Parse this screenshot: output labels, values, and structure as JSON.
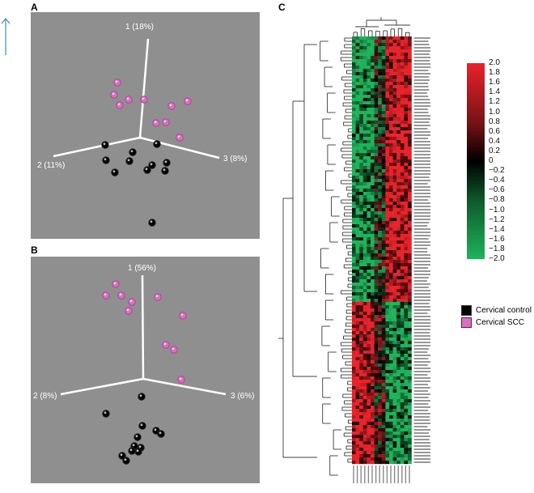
{
  "panels": {
    "a": {
      "letter": "A",
      "axes": [
        "1 (18%)",
        "2 (11%)",
        "3 (8%)"
      ]
    },
    "b": {
      "letter": "B",
      "axes": [
        "1 (56%)",
        "2 (8%)",
        "3 (6%)"
      ]
    },
    "c": {
      "letter": "C"
    }
  },
  "scale": {
    "ticks": [
      "2.0",
      "1.8",
      "1.6",
      "1.4",
      "1.2",
      "1.0",
      "0.8",
      "0.6",
      "0.4",
      "0.2",
      "0",
      "−0.2",
      "−0.4",
      "−0.6",
      "−0.8",
      "−1.0",
      "−1.2",
      "−1.4",
      "−1.6",
      "−1.8",
      "−2.0"
    ],
    "high_color": "#e8232a",
    "mid_color": "#000000",
    "low_color": "#1fb35a"
  },
  "legend": [
    {
      "label": "Cervical control",
      "color": "#000000"
    },
    {
      "label": "Cervical SCC",
      "color": "#d96fc0"
    }
  ],
  "colors": {
    "pca_background": "#8f8f8f",
    "arrow": "#2a8fcf"
  }
}
